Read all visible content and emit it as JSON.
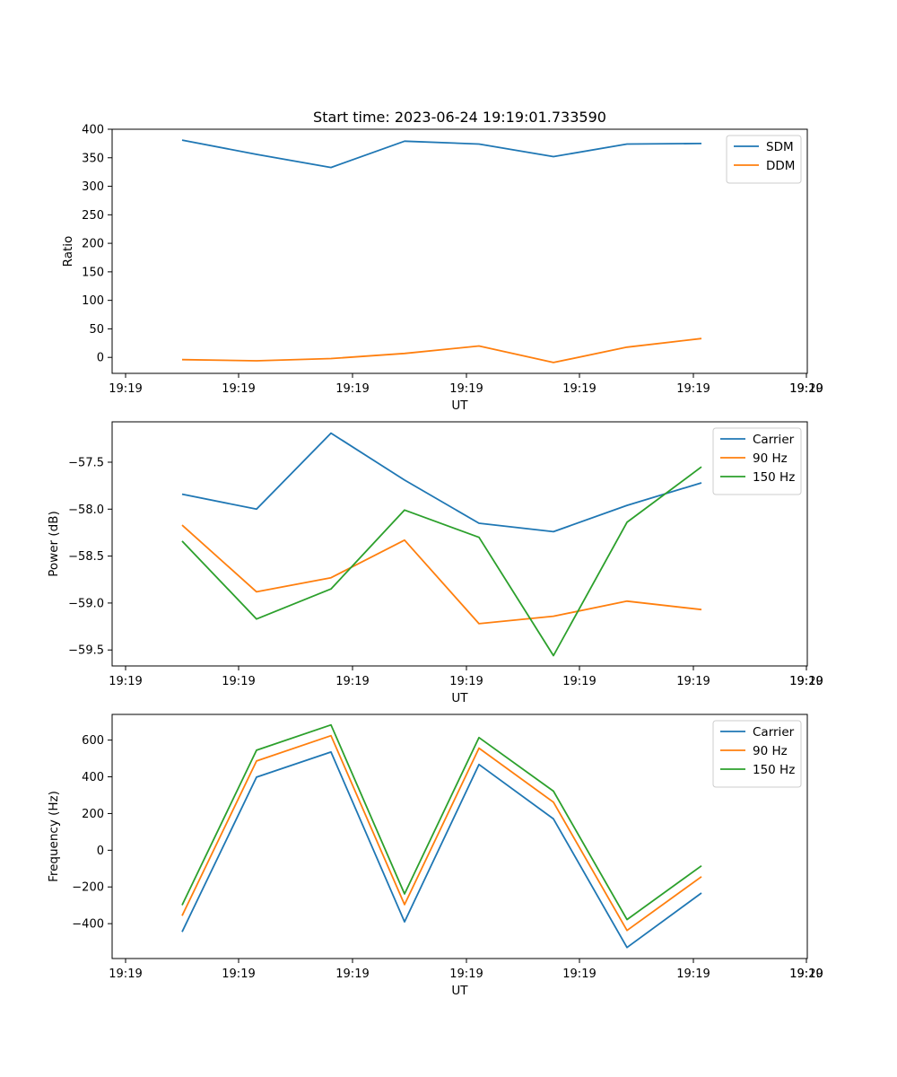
{
  "figure_title": "Start time: 2023-06-24 19:19:01.733590",
  "chart_data": [
    {
      "type": "line",
      "title": "Start time: 2023-06-24 19:19:01.733590",
      "xlabel": "UT",
      "ylabel": "Ratio",
      "x_tick_labels": [
        "19:19",
        "19:19",
        "19:19",
        "19:19",
        "19:19",
        "19:19",
        "19:19",
        "19:20"
      ],
      "y_ticks": [
        0,
        50,
        100,
        150,
        200,
        250,
        300,
        350,
        400
      ],
      "y_tick_labels": [
        "0",
        "50",
        "100",
        "150",
        "200",
        "250",
        "300",
        "350",
        "400"
      ],
      "ylim": [
        -28,
        400
      ],
      "legend_position": "upper right",
      "series": [
        {
          "name": "SDM",
          "color": "#1f77b4",
          "values": [
            381,
            356,
            333,
            379,
            374,
            352,
            374,
            375
          ]
        },
        {
          "name": "DDM",
          "color": "#ff7f0e",
          "values": [
            -4,
            -6,
            -2,
            7,
            20,
            -9,
            18,
            33
          ]
        }
      ]
    },
    {
      "type": "line",
      "xlabel": "UT",
      "ylabel": "Power (dB)",
      "x_tick_labels": [
        "19:19",
        "19:19",
        "19:19",
        "19:19",
        "19:19",
        "19:19",
        "19:19",
        "19:20"
      ],
      "y_ticks": [
        -59.5,
        -59.0,
        -58.5,
        -58.0,
        -57.5
      ],
      "y_tick_labels": [
        "−59.5",
        "−59.0",
        "−58.5",
        "−58.0",
        "−57.5"
      ],
      "ylim": [
        -59.67,
        -57.07
      ],
      "legend_position": "upper right",
      "series": [
        {
          "name": "Carrier",
          "color": "#1f77b4",
          "values": [
            -57.84,
            -58.0,
            -57.19,
            -57.69,
            -58.15,
            -58.24,
            -57.96,
            -57.72
          ]
        },
        {
          "name": "90 Hz",
          "color": "#ff7f0e",
          "values": [
            -58.17,
            -58.88,
            -58.73,
            -58.33,
            -59.22,
            -59.14,
            -58.98,
            -59.07
          ]
        },
        {
          "name": "150 Hz",
          "color": "#2ca02c",
          "values": [
            -58.34,
            -59.17,
            -58.85,
            -58.01,
            -58.3,
            -59.56,
            -58.14,
            -57.55
          ]
        }
      ]
    },
    {
      "type": "line",
      "xlabel": "UT",
      "ylabel": "Frequency (Hz)",
      "x_tick_labels": [
        "19:19",
        "19:19",
        "19:19",
        "19:19",
        "19:19",
        "19:19",
        "19:19",
        "19:20"
      ],
      "y_ticks": [
        -400,
        -200,
        0,
        200,
        400,
        600
      ],
      "y_tick_labels": [
        "−400",
        "−200",
        "0",
        "200",
        "400",
        "600"
      ],
      "ylim": [
        -590,
        740
      ],
      "legend_position": "upper right",
      "series": [
        {
          "name": "Carrier",
          "color": "#1f77b4",
          "values": [
            -445,
            398,
            535,
            -390,
            467,
            171,
            -530,
            -233
          ]
        },
        {
          "name": "90 Hz",
          "color": "#ff7f0e",
          "values": [
            -357,
            486,
            624,
            -296,
            556,
            262,
            -437,
            -144
          ]
        },
        {
          "name": "150 Hz",
          "color": "#2ca02c",
          "values": [
            -299,
            545,
            683,
            -238,
            614,
            322,
            -378,
            -85
          ]
        }
      ]
    }
  ]
}
